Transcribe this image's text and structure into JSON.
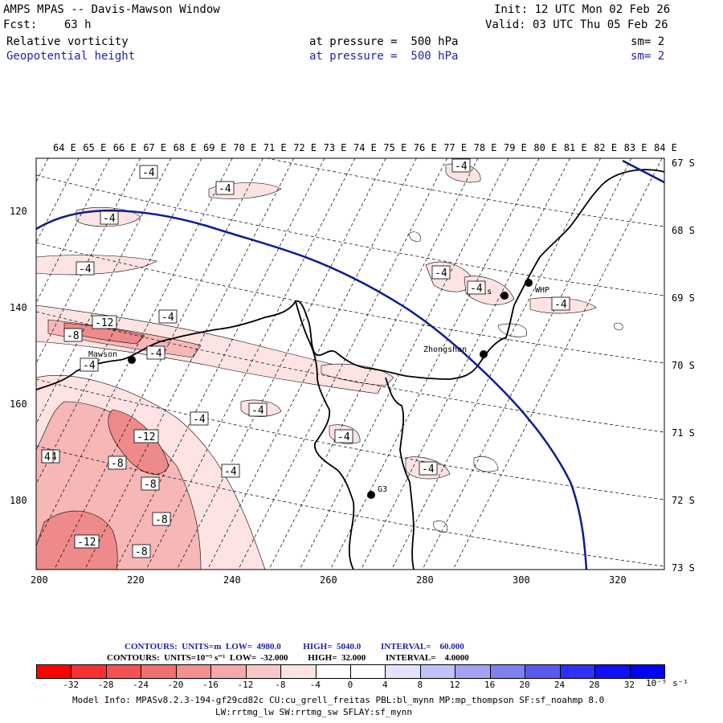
{
  "header": {
    "title": "AMPS MPAS -- Davis-Mawson Window",
    "fcst": "Fcst:    63 h",
    "init": "Init: 12 UTC Mon 02 Feb 26",
    "valid": "Valid: 03 UTC Thu 05 Feb 26",
    "field1_name": "Relative vorticity",
    "field1_level": "at pressure =  500 hPa",
    "field1_sm": "sm= 2",
    "field2_name": "Geopotential height",
    "field2_level": "at pressure =  500 hPa",
    "field2_sm": "sm= 2"
  },
  "map": {
    "top_lon_labels": [
      "64 E",
      "65 E",
      "66 E",
      "67 E",
      "68 E",
      "69 E",
      "70 E",
      "71 E",
      "72 E",
      "73 E",
      "74 E",
      "75 E",
      "76 E",
      "77 E",
      "78 E",
      "79 E",
      "80 E",
      "81 E",
      "82 E",
      "83 E",
      "84 E"
    ],
    "right_lat_labels": [
      "67 S",
      "68 S",
      "69 S",
      "70 S",
      "71 S",
      "72 S",
      "73 S"
    ],
    "left_y_labels": [
      "120",
      "140",
      "160",
      "180"
    ],
    "bottom_x_labels": [
      "200",
      "220",
      "240",
      "260",
      "280",
      "300",
      "320"
    ],
    "stations": [
      {
        "name": "Mawson"
      },
      {
        "name": "Davis"
      },
      {
        "name": "WHP"
      },
      {
        "name": "Zhongshan"
      },
      {
        "name": "G3"
      }
    ],
    "contour_labels": [
      "-4",
      "-4",
      "-4",
      "-4",
      "-4",
      "-4",
      "-4",
      "-4",
      "-12",
      "-8",
      "-4",
      "-4",
      "-4",
      "-4",
      "-4",
      "-4",
      "-4",
      "-12",
      "-8",
      "-8",
      "-8",
      "-12",
      "-8",
      "-4",
      "-4",
      "4"
    ],
    "colors": {
      "height_contour": "#0b1f8f",
      "vort_fill_light": "#fde3e3",
      "vort_fill_mid": "#f7b7b7",
      "vort_fill_strong": "#ef8a8a"
    }
  },
  "legend": {
    "line1": "CONTOURS:  UNITS=m  LOW=  4980.0          HIGH=  5040.0         INTERVAL=    60.000",
    "line2": "CONTOURS:  UNITS=10⁻⁵ s⁻¹  LOW=  -32.000         HIGH=  32.000         INTERVAL=    4.0000",
    "colorbar_labels": [
      "-32",
      "-28",
      "-24",
      "-20",
      "-16",
      "-12",
      "-8",
      "-4",
      "0",
      "4",
      "8",
      "12",
      "16",
      "20",
      "24",
      "28",
      "32"
    ],
    "units": "10⁻⁵ s⁻¹",
    "colorbar_colors": [
      "#ff0000",
      "#f83232",
      "#f25252",
      "#ee7070",
      "#f28f8f",
      "#f5a9a9",
      "#f9c7c7",
      "#fde3e3",
      "#ffffff",
      "#ffffff",
      "#e3e3fd",
      "#c2c2f8",
      "#a3a3f4",
      "#8080f0",
      "#5a5af0",
      "#3030f5",
      "#1010ff",
      "#0000ff"
    ]
  },
  "footer": {
    "line1": "Model Info: MPASv8.2.3-194-gf29cd82c CU:cu_grell_freitas PBL:bl_mynn MP:mp_thompson SF:sf_noahmp 8.0",
    "line2": "LW:rrtmg_lw SW:rrtmg_sw SFLAY:sf_mynn"
  }
}
